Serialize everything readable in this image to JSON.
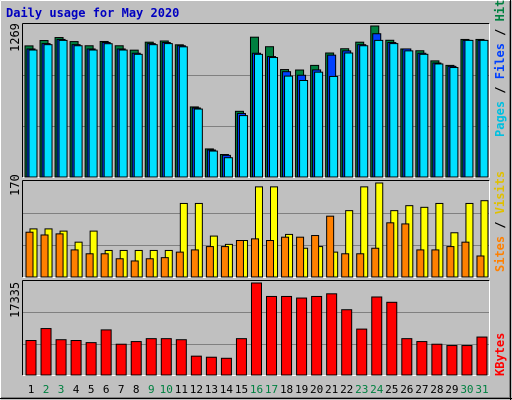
{
  "title": "Daily usage for May 2020",
  "colors": {
    "background": "#c0c0c0",
    "hits": "#008040",
    "files": "#0040ff",
    "pages": "#00e0ff",
    "visits": "#ffff00",
    "sites": "#ff8000",
    "kbytes": "#ff0000",
    "weekend_label": "#008040",
    "title": "#0000c0"
  },
  "panels": {
    "top": {
      "max_label": "1269",
      "right_label": {
        "pages": "Pages",
        "sep1": " / ",
        "files": "Files",
        "sep2": " / ",
        "hits": "Hits"
      }
    },
    "middle": {
      "max_label": "170",
      "right_label": {
        "sites": "Sites",
        "sep": " / ",
        "visits": "Visits"
      }
    },
    "bottom": {
      "max_label": "17335",
      "right_label": {
        "kbytes": "KBytes"
      }
    }
  },
  "chart_data": {
    "type": "bar",
    "title": "Daily usage for May 2020",
    "categories": [
      "1",
      "2",
      "3",
      "4",
      "5",
      "6",
      "7",
      "8",
      "9",
      "10",
      "11",
      "12",
      "13",
      "14",
      "15",
      "16",
      "17",
      "18",
      "19",
      "20",
      "21",
      "22",
      "23",
      "24",
      "25",
      "26",
      "27",
      "28",
      "29",
      "30",
      "31"
    ],
    "weekend_days": [
      "2",
      "3",
      "9",
      "10",
      "16",
      "17",
      "23",
      "24",
      "30",
      "31"
    ],
    "panels": [
      {
        "name": "requests",
        "ymax": 1269,
        "series": [
          {
            "name": "Hits",
            "values": [
              1102,
              1147,
              1172,
              1138,
              1103,
              1139,
              1103,
              1066,
              1133,
              1143,
              1111,
              589,
              236,
              189,
              552,
              1175,
              1095,
              903,
              899,
              938,
              1042,
              1078,
              1133,
              1269,
              1149,
              1076,
              1061,
              976,
              938,
              1156,
              1156
            ]
          },
          {
            "name": "Files",
            "values": [
              1076,
              1121,
              1156,
              1112,
              1076,
              1130,
              1076,
              1040,
              1121,
              1130,
              1103,
              580,
              227,
              182,
              534,
              1040,
              1012,
              885,
              855,
              900,
              1024,
              1060,
              1112,
              1204,
              1130,
              1076,
              1040,
              958,
              930,
              1148,
              1148
            ]
          },
          {
            "name": "Pages",
            "values": [
              1067,
              1112,
              1148,
              1103,
              1067,
              1120,
              1067,
              1031,
              1112,
              1121,
              1094,
              571,
              218,
              162,
              516,
              1031,
              1004,
              848,
              811,
              881,
              845,
              1042,
              1103,
              1148,
              1121,
              1060,
              1031,
              950,
              920,
              1148,
              1148
            ]
          }
        ]
      },
      {
        "name": "visitors",
        "ymax": 170,
        "series": [
          {
            "name": "Visits",
            "values": [
              87,
              87,
              83,
              63,
              83,
              48,
              48,
              48,
              48,
              48,
              133,
              133,
              74,
              59,
              66,
              163,
              163,
              77,
              52,
              55,
              45,
              120,
              163,
              170,
              120,
              129,
              126,
              133,
              80,
              133,
              138
            ]
          },
          {
            "name": "Sites",
            "values": [
              81,
              76,
              78,
              49,
              42,
              42,
              33,
              29,
              33,
              35,
              45,
              49,
              55,
              55,
              66,
              69,
              66,
              72,
              72,
              75,
              110,
              42,
              42,
              52,
              98,
              96,
              49,
              49,
              55,
              63,
              38
            ]
          }
        ]
      },
      {
        "name": "traffic",
        "ymax": 17335,
        "series": [
          {
            "name": "KBytes",
            "values": [
              6500,
              8750,
              6650,
              6500,
              6100,
              8500,
              5800,
              6300,
              6850,
              6850,
              6650,
              3550,
              3350,
              3150,
              6850,
              17335,
              14800,
              14800,
              14500,
              14800,
              15300,
              12300,
              8650,
              14700,
              13700,
              6850,
              6300,
              5800,
              5550,
              5550,
              7150
            ]
          }
        ]
      }
    ]
  }
}
